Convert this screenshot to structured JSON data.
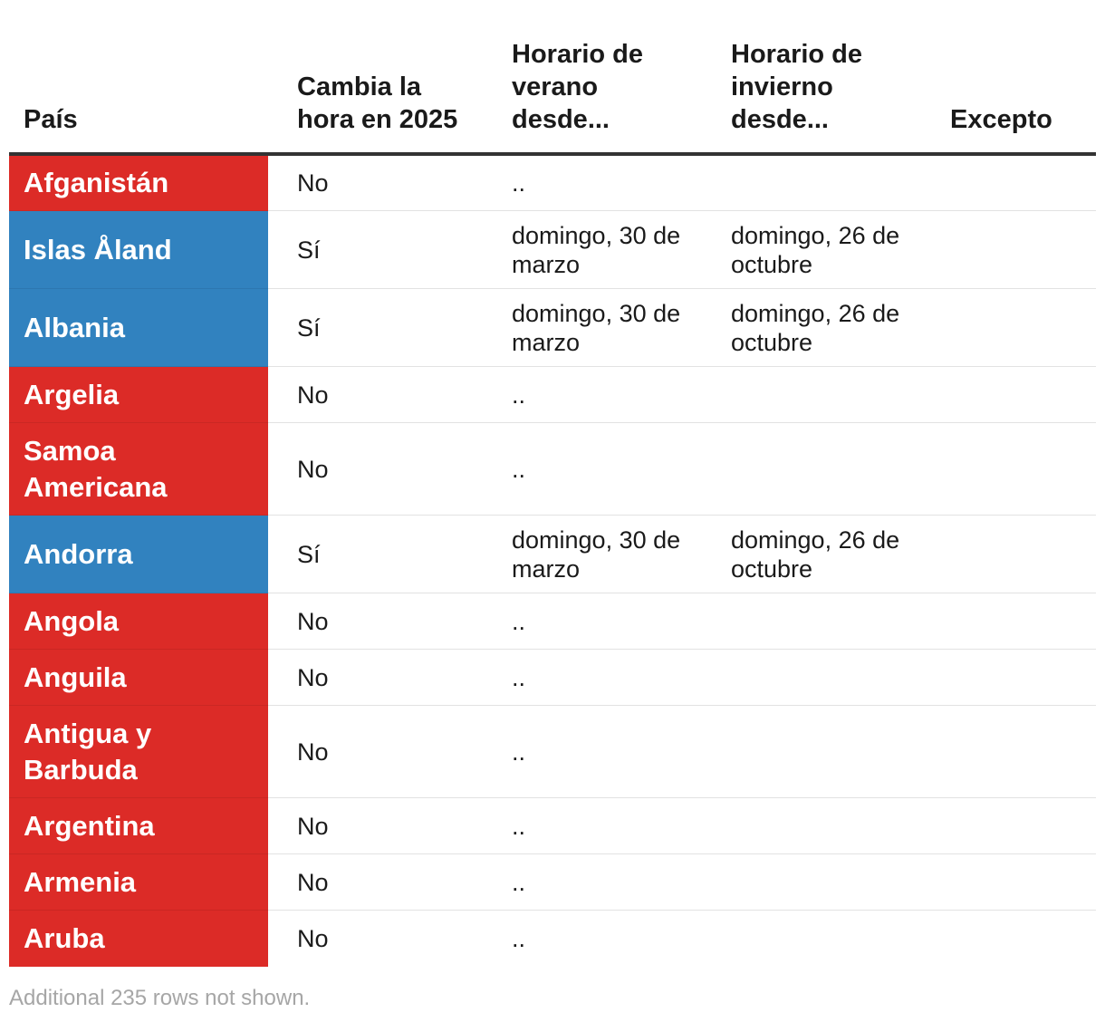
{
  "table": {
    "headers": {
      "country": "País",
      "changes": "Cambia la hora en 2025",
      "summer": "Horario de verano desde...",
      "winter": "Horario de invierno desde...",
      "except": "Excepto"
    },
    "colors": {
      "no": "#dc2b27",
      "yes": "#3182bf"
    },
    "rows": [
      {
        "country": "Afganistán",
        "changes": "No",
        "summer": "..",
        "winter": "",
        "except": ""
      },
      {
        "country": "Islas Åland",
        "changes": "Sí",
        "summer": "domingo, 30 de marzo",
        "winter": "domingo, 26 de octubre",
        "except": ""
      },
      {
        "country": "Albania",
        "changes": "Sí",
        "summer": "domingo, 30 de marzo",
        "winter": "domingo, 26 de octubre",
        "except": ""
      },
      {
        "country": "Argelia",
        "changes": "No",
        "summer": "..",
        "winter": "",
        "except": ""
      },
      {
        "country": "Samoa Americana",
        "changes": "No",
        "summer": "..",
        "winter": "",
        "except": ""
      },
      {
        "country": "Andorra",
        "changes": "Sí",
        "summer": "domingo, 30 de marzo",
        "winter": "domingo, 26 de octubre",
        "except": ""
      },
      {
        "country": "Angola",
        "changes": "No",
        "summer": "..",
        "winter": "",
        "except": ""
      },
      {
        "country": "Anguila",
        "changes": "No",
        "summer": "..",
        "winter": "",
        "except": ""
      },
      {
        "country": "Antigua y Barbuda",
        "changes": "No",
        "summer": "..",
        "winter": "",
        "except": ""
      },
      {
        "country": "Argentina",
        "changes": "No",
        "summer": "..",
        "winter": "",
        "except": ""
      },
      {
        "country": "Armenia",
        "changes": "No",
        "summer": "..",
        "winter": "",
        "except": ""
      },
      {
        "country": "Aruba",
        "changes": "No",
        "summer": "..",
        "winter": "",
        "except": ""
      }
    ]
  },
  "footnote": "Additional 235 rows not shown."
}
